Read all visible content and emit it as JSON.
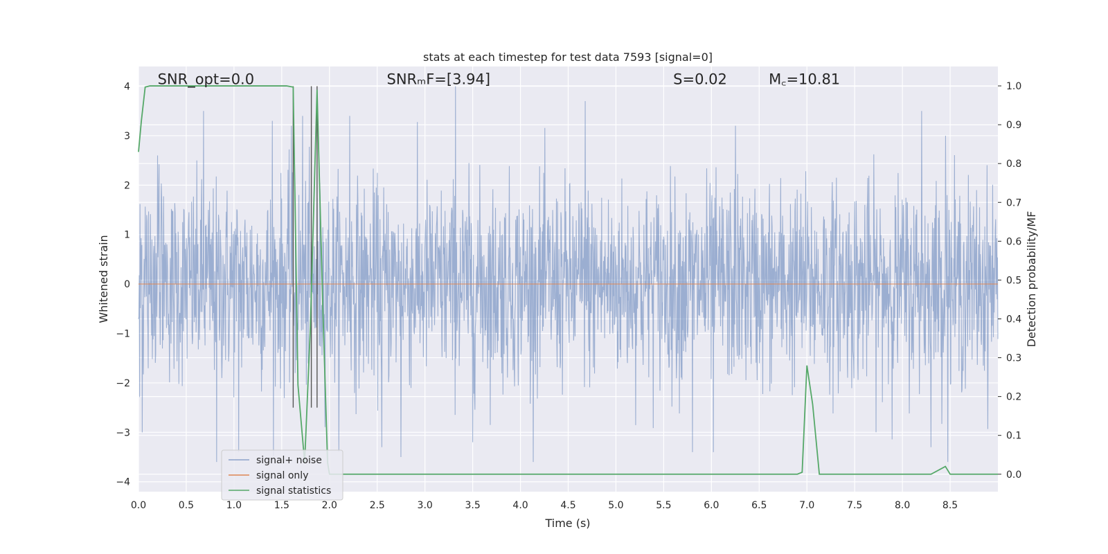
{
  "chart_data": {
    "type": "line",
    "title": "stats at each timestep for test data 7593 [signal=0]",
    "xlabel": "Time (s)",
    "ylabel": "Whitened strain",
    "ylabel_right": "Detection probability/MF",
    "xlim": [
      0.0,
      9.0
    ],
    "ylim": [
      -4.2,
      4.4
    ],
    "ylim_right": [
      -0.045,
      1.05
    ],
    "x_ticks": [
      "0.0",
      "0.5",
      "1.0",
      "1.5",
      "2.0",
      "2.5",
      "3.0",
      "3.5",
      "4.0",
      "4.5",
      "5.0",
      "5.5",
      "6.0",
      "6.5",
      "7.0",
      "7.5",
      "8.0",
      "8.5"
    ],
    "y_ticks": [
      "-4",
      "-3",
      "-2",
      "-1",
      "0",
      "1",
      "2",
      "3",
      "4"
    ],
    "y_ticks_right": [
      "0.0",
      "0.1",
      "0.2",
      "0.3",
      "0.4",
      "0.5",
      "0.6",
      "0.7",
      "0.8",
      "0.9",
      "1.0"
    ],
    "grid": true,
    "legend_position": "lower-left",
    "annotations": [
      {
        "x": 0.2,
        "y": 4.1,
        "text": "SNR_opt=0.0"
      },
      {
        "x": 2.6,
        "y": 4.1,
        "text": "SNRₘF=[3.94]"
      },
      {
        "x": 5.6,
        "y": 4.1,
        "text": "S=0.02"
      },
      {
        "x": 6.6,
        "y": 4.1,
        "text": "M꜀=10.81"
      }
    ],
    "markers_x": [
      1.62,
      1.81,
      1.87
    ],
    "series": [
      {
        "name": "signal+ noise",
        "color": "#4c72b0",
        "axis": "left",
        "x_range": [
          0.0,
          9.0
        ],
        "n_samples": 2300,
        "stddev": 1.0,
        "peaks": [
          {
            "x": 0.04,
            "y": -3.0
          },
          {
            "x": 0.2,
            "y": 2.6
          },
          {
            "x": 0.68,
            "y": 3.5
          },
          {
            "x": 0.82,
            "y": -3.6
          },
          {
            "x": 1.05,
            "y": -3.4
          },
          {
            "x": 1.4,
            "y": 3.3
          },
          {
            "x": 1.6,
            "y": 3.2
          },
          {
            "x": 1.72,
            "y": 3.4
          },
          {
            "x": 2.21,
            "y": 3.4
          },
          {
            "x": 2.55,
            "y": -3.3
          },
          {
            "x": 2.75,
            "y": -3.5
          },
          {
            "x": 3.32,
            "y": 4.0
          },
          {
            "x": 3.5,
            "y": -3.2
          },
          {
            "x": 4.68,
            "y": 3.7
          },
          {
            "x": 5.8,
            "y": -3.4
          },
          {
            "x": 6.02,
            "y": -3.4
          },
          {
            "x": 6.25,
            "y": 3.2
          },
          {
            "x": 8.3,
            "y": -3.3
          },
          {
            "x": 8.2,
            "y": 3.5
          },
          {
            "x": 8.45,
            "y": 3.0
          }
        ]
      },
      {
        "name": "signal only",
        "color": "#dd8452",
        "axis": "left",
        "x": [
          0.0,
          9.0
        ],
        "y": [
          0.0,
          0.0
        ]
      },
      {
        "name": "signal statistics",
        "color": "#55a868",
        "axis": "right",
        "x": [
          0.0,
          0.03,
          0.07,
          0.12,
          1.55,
          1.62,
          1.67,
          1.74,
          1.8,
          1.87,
          1.93,
          1.98,
          2.0,
          6.9,
          6.95,
          7.0,
          7.06,
          7.13,
          8.3,
          8.45,
          8.5,
          9.0
        ],
        "y": [
          0.83,
          0.91,
          0.997,
          1.0,
          1.0,
          0.997,
          0.23,
          0.03,
          0.38,
          0.99,
          0.43,
          0.03,
          0.0,
          0.0,
          0.005,
          0.28,
          0.18,
          0.0,
          0.0,
          0.02,
          0.0,
          0.0
        ]
      }
    ]
  }
}
